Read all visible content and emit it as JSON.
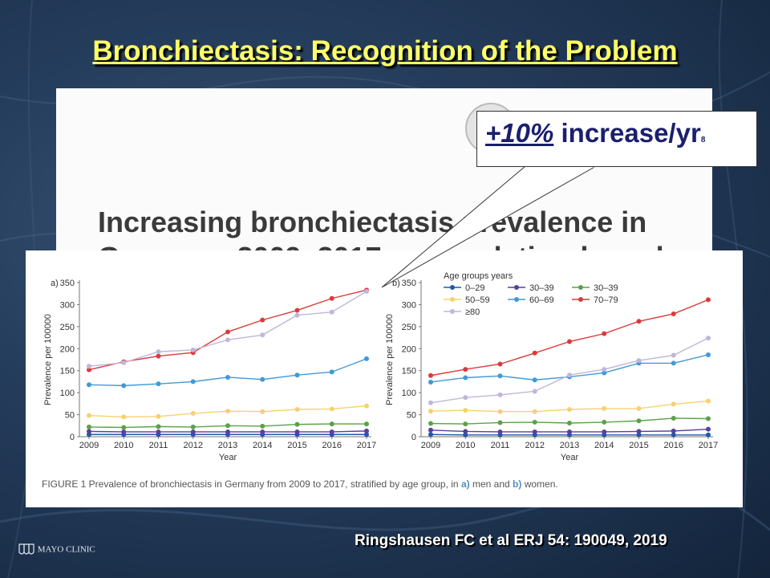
{
  "slide": {
    "title": "Bronchiectasis: Recognition of the Problem",
    "citation": "Ringshausen FC et al ERJ 54: 190049, 2019",
    "footer_logo_text": "MAYO CLINIC"
  },
  "paper": {
    "heading_line1": "Increasing bronchiectasis prevalence in",
    "heading_line2": "Germany, 2009–2017: a population-based"
  },
  "callout": {
    "pct": "+10%",
    "text": "increase/yr",
    "ref": "8"
  },
  "figure": {
    "caption_prefix": "FIGURE 1 Prevalence of bronchiectasis in Germany from 2009 to 2017, stratified by age group, in",
    "caption_a": "a)",
    "caption_mid": "men and",
    "caption_b": "b)",
    "caption_suffix": "women.",
    "legend_title": "Age groups years"
  },
  "chart_data": [
    {
      "type": "line",
      "panel_label": "a)",
      "xlabel": "Year",
      "ylabel": "Prevalence per 100000",
      "ylim": [
        0,
        350
      ],
      "yticks": [
        0,
        50,
        100,
        150,
        200,
        250,
        300,
        350
      ],
      "x": [
        2009,
        2010,
        2011,
        2012,
        2013,
        2014,
        2015,
        2016,
        2017
      ],
      "series": [
        {
          "name": "0–29",
          "color": "#1f5aa6",
          "values": [
            5,
            5,
            5,
            5,
            5,
            5,
            5,
            5,
            5
          ]
        },
        {
          "name": "30–39",
          "color": "#5b3f9c",
          "values": [
            12,
            11,
            11,
            11,
            11,
            11,
            11,
            11,
            13
          ]
        },
        {
          "name": "30–39",
          "color": "#5aa24a",
          "values": [
            22,
            21,
            23,
            22,
            25,
            24,
            28,
            29,
            29
          ]
        },
        {
          "name": "50–59",
          "color": "#f7d170",
          "values": [
            48,
            45,
            46,
            53,
            58,
            57,
            62,
            63,
            70
          ]
        },
        {
          "name": "60–69",
          "color": "#3f9ad8",
          "values": [
            118,
            116,
            120,
            125,
            135,
            130,
            140,
            147,
            177
          ]
        },
        {
          "name": "70–79",
          "color": "#dc3a3a",
          "values": [
            152,
            170,
            183,
            191,
            238,
            265,
            287,
            314,
            333
          ]
        },
        {
          "name": "≥80",
          "color": "#c1b6d9",
          "values": [
            160,
            168,
            193,
            197,
            220,
            231,
            276,
            283,
            330
          ]
        }
      ]
    },
    {
      "type": "line",
      "panel_label": "b)",
      "xlabel": "Year",
      "ylabel": "Prevalence per 100000",
      "ylim": [
        0,
        350
      ],
      "yticks": [
        0,
        50,
        100,
        150,
        200,
        250,
        300,
        350
      ],
      "x": [
        2009,
        2010,
        2011,
        2012,
        2013,
        2014,
        2015,
        2016,
        2017
      ],
      "legend": "top-left",
      "series": [
        {
          "name": "0–29",
          "color": "#1f5aa6",
          "values": [
            5,
            4,
            4,
            4,
            4,
            4,
            4,
            4,
            4
          ]
        },
        {
          "name": "30–39",
          "color": "#5b3f9c",
          "values": [
            15,
            12,
            11,
            11,
            11,
            11,
            12,
            13,
            17
          ]
        },
        {
          "name": "30–39",
          "color": "#5aa24a",
          "values": [
            30,
            29,
            32,
            33,
            31,
            33,
            36,
            42,
            41
          ]
        },
        {
          "name": "50–59",
          "color": "#f7d170",
          "values": [
            58,
            60,
            57,
            57,
            62,
            64,
            64,
            74,
            81
          ]
        },
        {
          "name": "60–69",
          "color": "#3f9ad8",
          "values": [
            124,
            134,
            138,
            129,
            136,
            145,
            167,
            167,
            186
          ]
        },
        {
          "name": "70–79",
          "color": "#dc3a3a",
          "values": [
            139,
            153,
            165,
            190,
            216,
            234,
            262,
            279,
            311
          ]
        },
        {
          "name": "≥80",
          "color": "#c1b6d9",
          "values": [
            77,
            89,
            95,
            103,
            140,
            153,
            173,
            185,
            224
          ]
        }
      ]
    }
  ]
}
